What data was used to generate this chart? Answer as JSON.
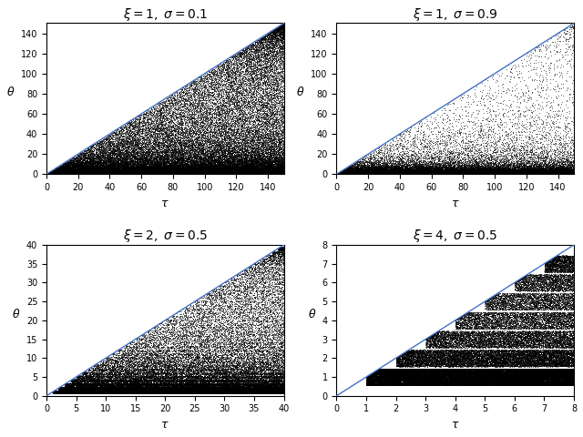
{
  "subplots": [
    {
      "title": "$\\xi = 1,\\;  \\sigma = 0.1$",
      "xi": 1,
      "sigma": 0.1,
      "tau_max": 150,
      "theta_max": 150,
      "xlim": [
        0,
        150
      ],
      "ylim": [
        0,
        150
      ],
      "tau_ticks": [
        0,
        20,
        40,
        60,
        80,
        100,
        120,
        140
      ],
      "theta_ticks": [
        0,
        20,
        40,
        60,
        80,
        100,
        120,
        140
      ],
      "n_points": 80000
    },
    {
      "title": "$\\xi = 1,\\;  \\sigma = 0.9$",
      "xi": 1,
      "sigma": 0.9,
      "tau_max": 150,
      "theta_max": 150,
      "xlim": [
        0,
        150
      ],
      "ylim": [
        0,
        150
      ],
      "tau_ticks": [
        0,
        20,
        40,
        60,
        80,
        100,
        120,
        140
      ],
      "theta_ticks": [
        0,
        20,
        40,
        60,
        80,
        100,
        120,
        140
      ],
      "n_points": 80000
    },
    {
      "title": "$\\xi = 2,\\;  \\sigma = 0.5$",
      "xi": 2,
      "sigma": 0.5,
      "tau_max": 40,
      "theta_max": 40,
      "xlim": [
        0,
        40
      ],
      "ylim": [
        0,
        40
      ],
      "tau_ticks": [
        0,
        5,
        10,
        15,
        20,
        25,
        30,
        35,
        40
      ],
      "theta_ticks": [
        0,
        5,
        10,
        15,
        20,
        25,
        30,
        35,
        40
      ],
      "n_points": 80000
    },
    {
      "title": "$\\xi = 4,\\;  \\sigma = 0.5$",
      "xi": 4,
      "sigma": 0.5,
      "tau_max": 8,
      "theta_max": 8,
      "xlim": [
        0,
        8
      ],
      "ylim": [
        0,
        8
      ],
      "tau_ticks": [
        0,
        1,
        2,
        3,
        4,
        5,
        6,
        7,
        8
      ],
      "theta_ticks": [
        0,
        1,
        2,
        3,
        4,
        5,
        6,
        7,
        8
      ],
      "n_points": 80000
    }
  ],
  "point_color": "#000000",
  "line_color": "#4472C4",
  "point_size": 0.4,
  "point_alpha": 0.6,
  "xlabel": "$\\tau$",
  "ylabel": "$\\theta$",
  "bg_color": "#ffffff",
  "fig_bg": "#ffffff"
}
